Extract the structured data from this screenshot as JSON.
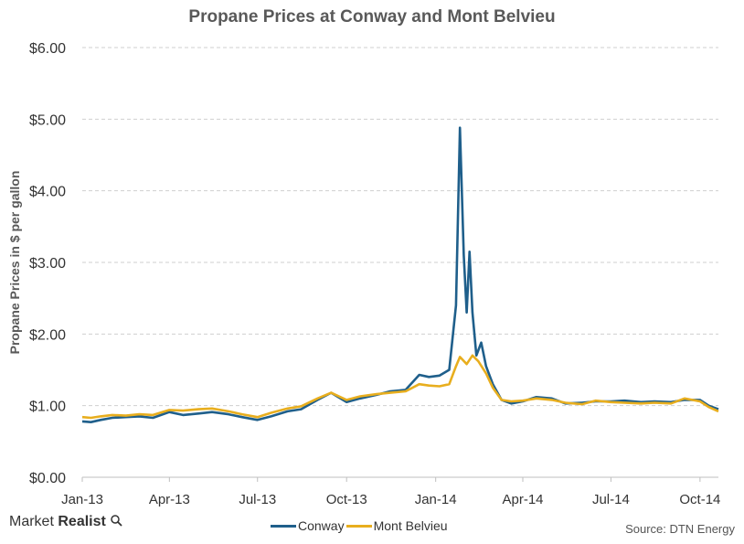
{
  "chart_data": {
    "type": "line",
    "title": "Propane Prices at Conway and Mont Belvieu",
    "ylabel": "Propane Prices in $ per gallon",
    "xlabel": "",
    "ylim": [
      0,
      6
    ],
    "yticks": [
      "$0.00",
      "$1.00",
      "$2.00",
      "$3.00",
      "$4.00",
      "$5.00",
      "$6.00"
    ],
    "xticks": [
      {
        "label": "Jan-13",
        "date": "2013-01-01"
      },
      {
        "label": "Apr-13",
        "date": "2013-04-01"
      },
      {
        "label": "Jul-13",
        "date": "2013-07-01"
      },
      {
        "label": "Oct-13",
        "date": "2013-10-01"
      },
      {
        "label": "Jan-14",
        "date": "2014-01-01"
      },
      {
        "label": "Apr-14",
        "date": "2014-04-01"
      },
      {
        "label": "Jul-14",
        "date": "2014-07-01"
      },
      {
        "label": "Oct-14",
        "date": "2014-10-01"
      }
    ],
    "xlim": [
      "2013-01-01",
      "2014-10-20"
    ],
    "grid": true,
    "legend_position": "bottom",
    "series": [
      {
        "name": "Conway",
        "color": "#1f5f8b",
        "points": [
          [
            "2013-01-01",
            0.78
          ],
          [
            "2013-01-10",
            0.77
          ],
          [
            "2013-01-20",
            0.8
          ],
          [
            "2013-02-01",
            0.83
          ],
          [
            "2013-02-15",
            0.84
          ],
          [
            "2013-03-01",
            0.85
          ],
          [
            "2013-03-15",
            0.83
          ],
          [
            "2013-04-01",
            0.91
          ],
          [
            "2013-04-15",
            0.87
          ],
          [
            "2013-05-01",
            0.89
          ],
          [
            "2013-05-15",
            0.91
          ],
          [
            "2013-06-01",
            0.88
          ],
          [
            "2013-06-15",
            0.84
          ],
          [
            "2013-07-01",
            0.8
          ],
          [
            "2013-07-15",
            0.85
          ],
          [
            "2013-08-01",
            0.92
          ],
          [
            "2013-08-15",
            0.95
          ],
          [
            "2013-09-01",
            1.08
          ],
          [
            "2013-09-15",
            1.18
          ],
          [
            "2013-10-01",
            1.05
          ],
          [
            "2013-10-15",
            1.1
          ],
          [
            "2013-11-01",
            1.15
          ],
          [
            "2013-11-15",
            1.2
          ],
          [
            "2013-12-01",
            1.22
          ],
          [
            "2013-12-15",
            1.43
          ],
          [
            "2013-12-25",
            1.4
          ],
          [
            "2014-01-05",
            1.42
          ],
          [
            "2014-01-15",
            1.5
          ],
          [
            "2014-01-22",
            2.4
          ],
          [
            "2014-01-26",
            4.88
          ],
          [
            "2014-01-30",
            3.1
          ],
          [
            "2014-02-02",
            2.3
          ],
          [
            "2014-02-05",
            3.15
          ],
          [
            "2014-02-08",
            2.3
          ],
          [
            "2014-02-12",
            1.7
          ],
          [
            "2014-02-17",
            1.88
          ],
          [
            "2014-02-22",
            1.55
          ],
          [
            "2014-03-01",
            1.3
          ],
          [
            "2014-03-10",
            1.08
          ],
          [
            "2014-03-20",
            1.03
          ],
          [
            "2014-04-01",
            1.06
          ],
          [
            "2014-04-15",
            1.12
          ],
          [
            "2014-05-01",
            1.1
          ],
          [
            "2014-05-15",
            1.03
          ],
          [
            "2014-06-01",
            1.04
          ],
          [
            "2014-06-15",
            1.06
          ],
          [
            "2014-07-01",
            1.06
          ],
          [
            "2014-07-15",
            1.07
          ],
          [
            "2014-08-01",
            1.05
          ],
          [
            "2014-08-15",
            1.06
          ],
          [
            "2014-09-01",
            1.05
          ],
          [
            "2014-09-15",
            1.08
          ],
          [
            "2014-10-01",
            1.08
          ],
          [
            "2014-10-10",
            1.0
          ],
          [
            "2014-10-20",
            0.95
          ]
        ]
      },
      {
        "name": "Mont Belvieu",
        "color": "#e8ae1e",
        "points": [
          [
            "2013-01-01",
            0.84
          ],
          [
            "2013-01-10",
            0.83
          ],
          [
            "2013-01-20",
            0.85
          ],
          [
            "2013-02-01",
            0.87
          ],
          [
            "2013-02-15",
            0.86
          ],
          [
            "2013-03-01",
            0.88
          ],
          [
            "2013-03-15",
            0.87
          ],
          [
            "2013-04-01",
            0.94
          ],
          [
            "2013-04-15",
            0.93
          ],
          [
            "2013-05-01",
            0.95
          ],
          [
            "2013-05-15",
            0.96
          ],
          [
            "2013-06-01",
            0.92
          ],
          [
            "2013-06-15",
            0.88
          ],
          [
            "2013-07-01",
            0.84
          ],
          [
            "2013-07-15",
            0.9
          ],
          [
            "2013-08-01",
            0.96
          ],
          [
            "2013-08-15",
            0.99
          ],
          [
            "2013-09-01",
            1.1
          ],
          [
            "2013-09-15",
            1.18
          ],
          [
            "2013-10-01",
            1.08
          ],
          [
            "2013-10-15",
            1.13
          ],
          [
            "2013-11-01",
            1.16
          ],
          [
            "2013-11-15",
            1.18
          ],
          [
            "2013-12-01",
            1.2
          ],
          [
            "2013-12-15",
            1.3
          ],
          [
            "2013-12-25",
            1.28
          ],
          [
            "2014-01-05",
            1.27
          ],
          [
            "2014-01-15",
            1.3
          ],
          [
            "2014-01-22",
            1.55
          ],
          [
            "2014-01-26",
            1.68
          ],
          [
            "2014-02-02",
            1.58
          ],
          [
            "2014-02-08",
            1.7
          ],
          [
            "2014-02-14",
            1.62
          ],
          [
            "2014-02-22",
            1.45
          ],
          [
            "2014-03-01",
            1.25
          ],
          [
            "2014-03-10",
            1.08
          ],
          [
            "2014-03-20",
            1.06
          ],
          [
            "2014-04-01",
            1.07
          ],
          [
            "2014-04-15",
            1.1
          ],
          [
            "2014-05-01",
            1.08
          ],
          [
            "2014-05-15",
            1.04
          ],
          [
            "2014-06-01",
            1.02
          ],
          [
            "2014-06-15",
            1.07
          ],
          [
            "2014-07-01",
            1.05
          ],
          [
            "2014-07-15",
            1.04
          ],
          [
            "2014-08-01",
            1.03
          ],
          [
            "2014-08-15",
            1.04
          ],
          [
            "2014-09-01",
            1.03
          ],
          [
            "2014-09-15",
            1.1
          ],
          [
            "2014-10-01",
            1.06
          ],
          [
            "2014-10-10",
            0.98
          ],
          [
            "2014-10-20",
            0.92
          ]
        ]
      }
    ]
  },
  "branding": {
    "logo_prefix": "Market",
    "logo_suffix": "Realist"
  },
  "source": "Source: DTN Energy",
  "icons": {
    "logo": "magnifier-icon"
  }
}
